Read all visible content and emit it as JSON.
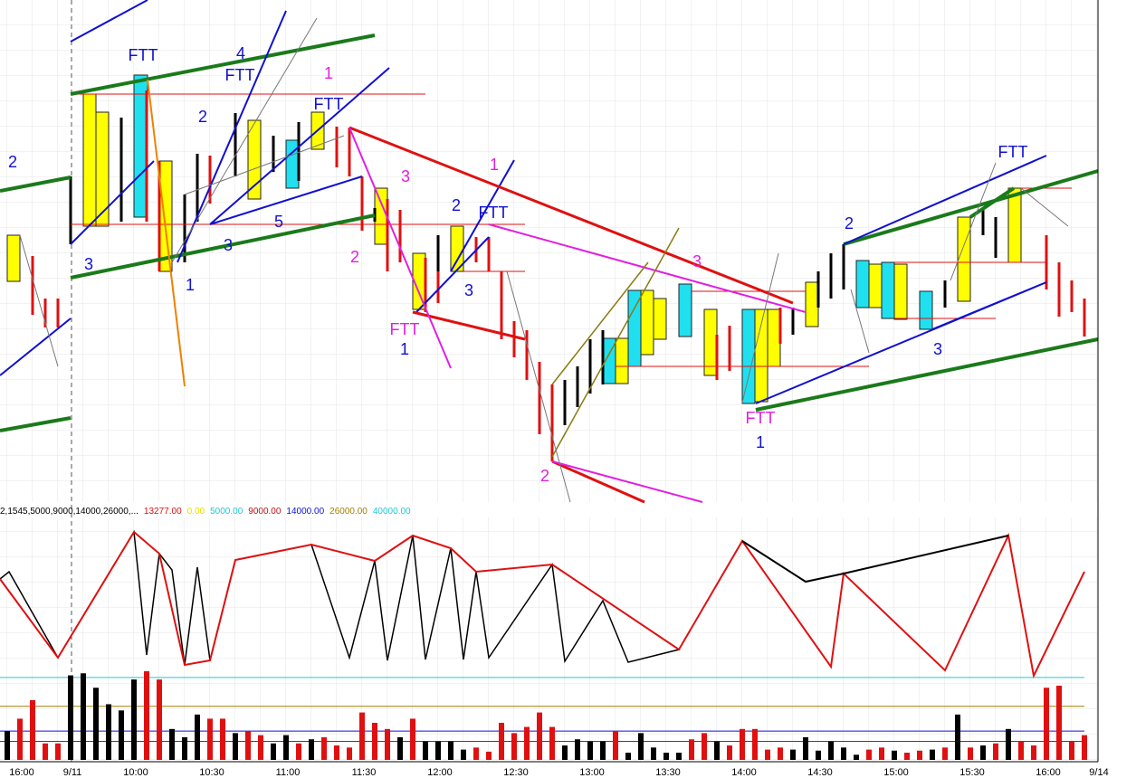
{
  "chart_data": {
    "type": "bar",
    "study_label": "2,1545,5000,9000,14000,26000,...",
    "levels": [
      {
        "value": 13277,
        "label": "13277.00",
        "color": "#e01010",
        "line": false
      },
      {
        "value": 0,
        "label": "0.00",
        "color": "#e8e000",
        "line": false
      },
      {
        "value": 5000,
        "label": "5000.00",
        "color": "#20c8d8",
        "line": false
      },
      {
        "value": 9000,
        "label": "9000.00",
        "color": "#c01010",
        "line": true
      },
      {
        "value": 14000,
        "label": "14000.00",
        "color": "#1010d0",
        "line": true
      },
      {
        "value": 26000,
        "label": "26000.00",
        "color": "#a08000",
        "line": true
      },
      {
        "value": 40000,
        "label": "40000.00",
        "color": "#20c8d8",
        "line": true
      }
    ],
    "annotations": [
      "2",
      "FTT",
      "4",
      "FTT",
      "1",
      "FTT",
      "2",
      "3",
      "3",
      "5",
      "1",
      "3",
      "2",
      "FTT",
      "1",
      "1",
      "2",
      "FTT",
      "3",
      "2",
      "3",
      "FTT",
      "1",
      "2",
      "3",
      "FTT"
    ],
    "categories": [
      null,
      "16:00",
      null,
      null,
      null,
      "9/11",
      null,
      null,
      null,
      null,
      "10:00",
      null,
      null,
      null,
      null,
      null,
      "10:30",
      null,
      null,
      null,
      null,
      null,
      "11:00",
      null,
      null,
      null,
      null,
      null,
      "11:30",
      null,
      null,
      null,
      null,
      null,
      "12:00",
      null,
      null,
      null,
      null,
      null,
      "12:30",
      null,
      null,
      null,
      null,
      null,
      "13:00",
      null,
      null,
      null,
      null,
      null,
      "13:30",
      null,
      null,
      null,
      null,
      null,
      "14:00",
      null,
      null,
      null,
      null,
      null,
      "14:30",
      null,
      null,
      null,
      null,
      null,
      "15:00",
      null,
      null,
      null,
      null,
      null,
      "15:30",
      null,
      null,
      null,
      null,
      null,
      "16:00",
      null,
      null,
      null,
      "9/14"
    ],
    "values": [
      14000,
      20000,
      29000,
      8000,
      8000,
      41000,
      42000,
      35000,
      27000,
      24000,
      39000,
      43000,
      39000,
      15000,
      11000,
      22000,
      20000,
      20000,
      13000,
      14000,
      12000,
      8000,
      12000,
      8000,
      10000,
      11000,
      7000,
      6000,
      23000,
      18000,
      15000,
      11000,
      20000,
      9000,
      9000,
      9000,
      5000,
      6000,
      4000,
      18000,
      13000,
      16000,
      23000,
      16000,
      7000,
      10000,
      9000,
      9000,
      14000,
      3500,
      13000,
      6000,
      3500,
      3500,
      10000,
      13000,
      9000,
      7000,
      15000,
      15000,
      5000,
      6000,
      5000,
      11000,
      4500,
      9000,
      6000,
      2500,
      5000,
      6000,
      4500,
      3500,
      4500,
      5000,
      6000,
      22000,
      6000,
      7000,
      8000,
      15000,
      9000,
      7000,
      35000,
      36000,
      9000,
      12000,
      null
    ],
    "bar_colors": [
      "#000",
      "#e01010",
      "#e01010",
      "#e01010",
      "#e01010",
      "#000",
      "#000",
      "#000",
      "#000",
      "#000",
      "#000",
      "#e01010",
      "#e01010",
      "#000",
      "#000",
      "#000",
      "#e01010",
      "#e01010",
      "#000",
      "#e01010",
      "#e01010",
      "#000",
      "#000",
      "#e01010",
      "#000",
      "#e01010",
      "#e01010",
      "#e01010",
      "#e01010",
      "#e01010",
      "#e01010",
      "#000",
      "#e01010",
      "#000",
      "#000",
      "#000",
      "#000",
      "#e01010",
      "#e01010",
      "#e01010",
      "#e01010",
      "#e01010",
      "#e01010",
      "#e01010",
      "#000",
      "#000",
      "#000",
      "#000",
      "#e01010",
      "#000",
      "#000",
      "#000",
      "#000",
      "#000",
      "#e01010",
      "#e01010",
      "#000",
      "#e01010",
      "#e01010",
      "#e01010",
      "#e01010",
      "#e01010",
      "#000",
      "#000",
      "#000",
      "#000",
      "#000",
      "#000",
      "#e01010",
      "#e01010",
      "#000",
      "#e01010",
      "#e01010",
      "#000",
      "#e01010",
      "#000",
      "#e01010",
      "#000",
      "#e01010",
      "#000",
      "#e01010",
      "#e01010",
      "#e01010",
      "#e01010",
      "#e01010",
      "#e01010",
      "#000"
    ],
    "ylim": [
      0,
      43000
    ]
  }
}
